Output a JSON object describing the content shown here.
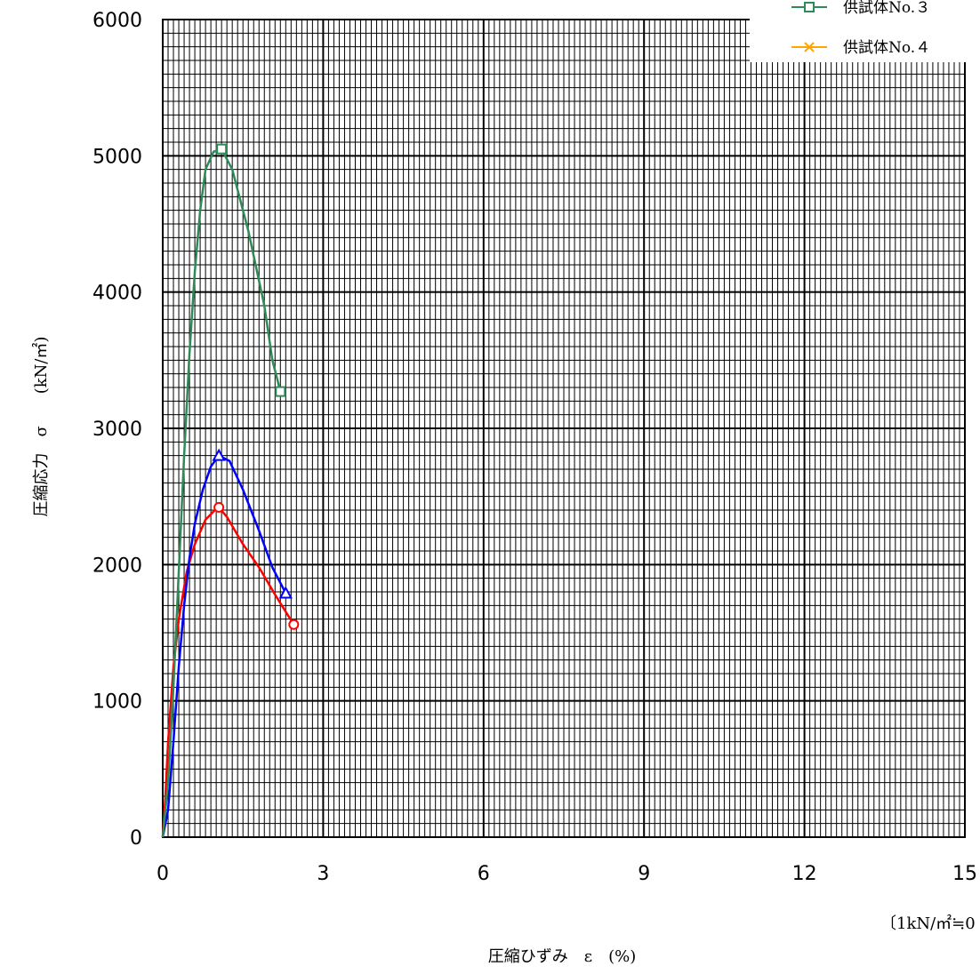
{
  "chart_data": {
    "type": "line",
    "xlabel": "圧縮ひずみ　ε　(%)",
    "ylabel": "圧縮応力　σ　　(kN/㎡)",
    "note": "〔1kN/㎡≒0",
    "xlim": [
      0,
      15
    ],
    "ylim": [
      0,
      6000
    ],
    "xticks": [
      "0",
      "3",
      "6",
      "9",
      "12",
      "15"
    ],
    "yticks": [
      "0",
      "1000",
      "2000",
      "3000",
      "4000",
      "5000",
      "6000"
    ],
    "grid": "on (minor 0.1% / 100 kN/㎡, major 3% / 1000 kN/㎡)",
    "legend_position": "top-right",
    "series": [
      {
        "name": "",
        "color": "#ff0000",
        "marker": "circle",
        "x": [
          0,
          0.05,
          0.1,
          0.2,
          0.3,
          0.45,
          0.6,
          0.8,
          1.0,
          1.05,
          1.2,
          1.5,
          1.8,
          2.1,
          2.45
        ],
        "y": [
          0,
          300,
          700,
          1250,
          1600,
          1950,
          2150,
          2330,
          2410,
          2420,
          2350,
          2150,
          1980,
          1780,
          1560
        ]
      },
      {
        "name": "",
        "color": "#0000ff",
        "marker": "triangle",
        "x": [
          0,
          0.1,
          0.2,
          0.3,
          0.4,
          0.5,
          0.6,
          0.75,
          0.9,
          1.05,
          1.25,
          1.5,
          1.8,
          2.05,
          2.3
        ],
        "y": [
          0,
          200,
          700,
          1250,
          1700,
          2050,
          2300,
          2550,
          2720,
          2800,
          2760,
          2550,
          2250,
          1980,
          1790
        ]
      },
      {
        "name": "供試体No.３",
        "color": "#2e8b57",
        "marker": "square",
        "x": [
          0,
          0.1,
          0.2,
          0.3,
          0.4,
          0.5,
          0.6,
          0.7,
          0.8,
          0.95,
          1.1,
          1.3,
          1.6,
          1.9,
          2.05,
          2.2
        ],
        "y": [
          0,
          400,
          1100,
          1950,
          2800,
          3550,
          4150,
          4600,
          4900,
          5030,
          5050,
          4900,
          4450,
          3900,
          3500,
          3270
        ]
      },
      {
        "name": "供試体No.４",
        "color": "#ffa500",
        "marker": "x",
        "x": [],
        "y": []
      }
    ]
  }
}
